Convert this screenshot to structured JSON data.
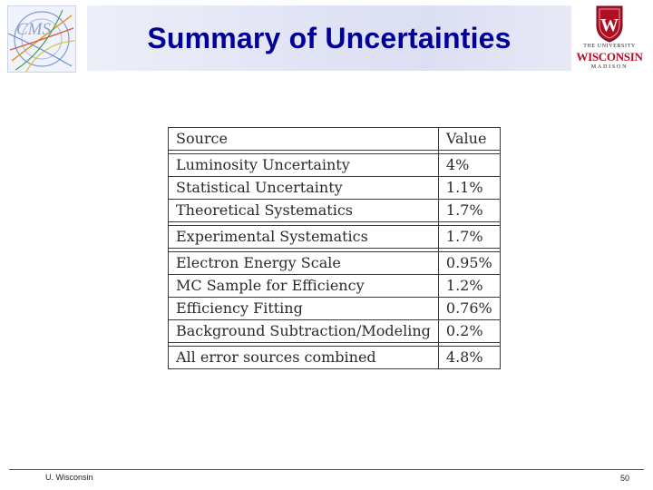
{
  "header": {
    "title": "Summary of Uncertainties",
    "left_logo": {
      "text": "CMS"
    },
    "right_logo": {
      "line1": "THE UNIVERSITY",
      "line2": "WISCONSIN",
      "line3": "MADISON",
      "crest_letter": "W"
    }
  },
  "table": {
    "header": {
      "source": "Source",
      "value": "Value"
    },
    "groups": [
      {
        "rows": [
          {
            "source": "Luminosity Uncertainty",
            "value": "4%"
          },
          {
            "source": "Statistical Uncertainty",
            "value": "1.1%"
          },
          {
            "source": "Theoretical Systematics",
            "value": "1.7%"
          }
        ]
      },
      {
        "rows": [
          {
            "source": "Experimental Systematics",
            "value": "1.7%"
          }
        ]
      },
      {
        "rows": [
          {
            "source": "Electron Energy Scale",
            "value": "0.95%"
          },
          {
            "source": "MC Sample for Efficiency",
            "value": "1.2%"
          },
          {
            "source": "Efficiency Fitting",
            "value": "0.76%"
          },
          {
            "source": "Background Subtraction/Modeling",
            "value": "0.2%"
          }
        ]
      },
      {
        "rows": [
          {
            "source": "All error sources combined",
            "value": "4.8%"
          }
        ]
      }
    ]
  },
  "footer": {
    "left": "U. Wisconsin",
    "page_number": "50"
  },
  "colors": {
    "title": "#000099",
    "title_band": "#dcdff3",
    "uw_red": "#b10d25"
  }
}
